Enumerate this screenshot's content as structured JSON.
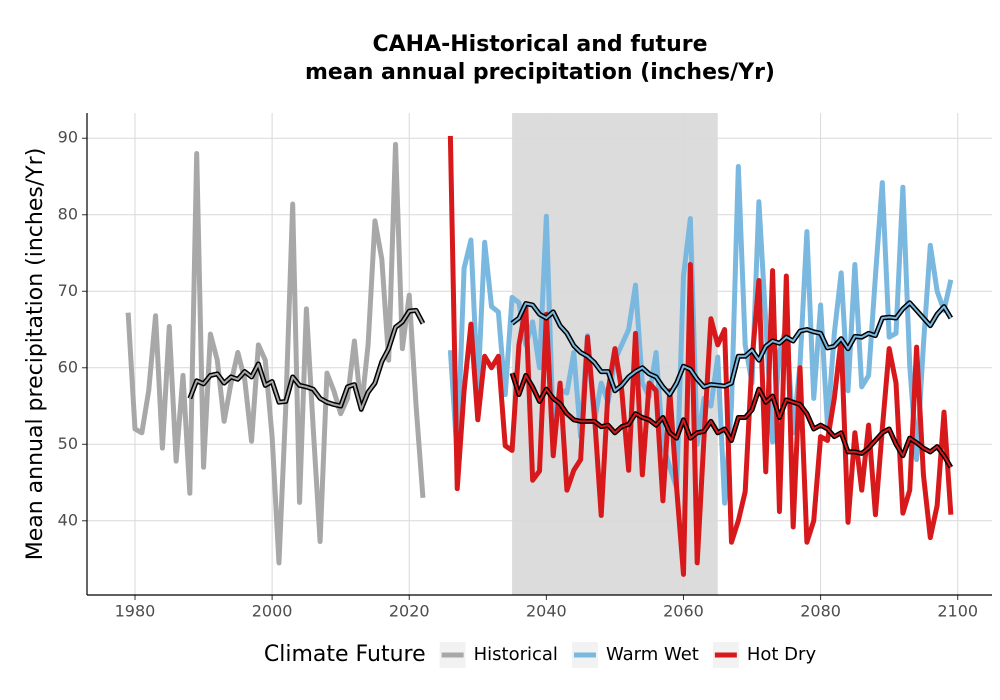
{
  "chart_data": {
    "type": "line",
    "title": [
      "CAHA-Historical and future",
      "mean annual precipitation (inches/Yr)"
    ],
    "y_label": "Mean annual precipitation (inches/Yr)",
    "legend_title": "Climate Future",
    "legend": "bottom",
    "grid": true,
    "xlim": [
      1973,
      2105
    ],
    "ylim": [
      30.3,
      93.3
    ],
    "xticks": [
      1980,
      2000,
      2020,
      2040,
      2060,
      2080,
      2100
    ],
    "yticks": [
      40,
      50,
      60,
      70,
      80,
      90
    ],
    "shaded_span": [
      2035,
      2065
    ],
    "shade_color": "#dcdcdc",
    "smooth_color": "#000000",
    "series": [
      {
        "name": "Historical",
        "color": "#a8a8a8",
        "x": [
          1979,
          1980,
          1981,
          1982,
          1983,
          1984,
          1985,
          1986,
          1987,
          1988,
          1989,
          1990,
          1991,
          1992,
          1993,
          1994,
          1995,
          1996,
          1997,
          1998,
          1999,
          2000,
          2001,
          2002,
          2003,
          2004,
          2005,
          2006,
          2007,
          2008,
          2009,
          2010,
          2011,
          2012,
          2013,
          2014,
          2015,
          2016,
          2017,
          2018,
          2019,
          2020,
          2021,
          2022
        ],
        "values": [
          67.2,
          52,
          51.5,
          57,
          66.8,
          49.5,
          65.4,
          47.8,
          59,
          43.6,
          88,
          47,
          64.4,
          61,
          53,
          58,
          62,
          58.5,
          50.4,
          63,
          61,
          51,
          34.5,
          55,
          81.4,
          42.4,
          67.7,
          52,
          37.3,
          59.3,
          57,
          54,
          56,
          63.5,
          54.5,
          63,
          79.2,
          74.2,
          61,
          89.2,
          62.5,
          69.5,
          55,
          43
        ],
        "smooth": [
          null,
          null,
          null,
          null,
          null,
          null,
          null,
          null,
          null,
          56,
          58.3,
          57.9,
          59,
          59.2,
          58,
          58.8,
          58.5,
          59.5,
          58.8,
          60.5,
          57.7,
          58.2,
          55.5,
          55.6,
          58.8,
          57.7,
          57.5,
          57.2,
          56,
          55.5,
          55.2,
          55,
          57.5,
          57.8,
          54.6,
          56.8,
          58,
          60.8,
          62.5,
          65.3,
          66,
          67.4,
          67.5,
          65.8
        ]
      },
      {
        "name": "Warm Wet",
        "color": "#7ab8e0",
        "x": [
          2026,
          2027,
          2028,
          2029,
          2030,
          2031,
          2032,
          2033,
          2034,
          2035,
          2036,
          2037,
          2038,
          2039,
          2040,
          2041,
          2042,
          2043,
          2044,
          2045,
          2046,
          2047,
          2048,
          2049,
          2050,
          2051,
          2052,
          2053,
          2054,
          2055,
          2056,
          2057,
          2058,
          2059,
          2060,
          2061,
          2062,
          2063,
          2064,
          2065,
          2066,
          2067,
          2068,
          2069,
          2070,
          2071,
          2072,
          2073,
          2074,
          2075,
          2076,
          2077,
          2078,
          2079,
          2080,
          2081,
          2082,
          2083,
          2084,
          2085,
          2086,
          2087,
          2088,
          2089,
          2090,
          2091,
          2092,
          2093,
          2094,
          2095,
          2096,
          2097,
          2098,
          2099
        ],
        "values": [
          62.3,
          48.2,
          73,
          76.7,
          57,
          76.4,
          68,
          67.3,
          56.5,
          69.2,
          68.5,
          63,
          66,
          60,
          79.8,
          52,
          57.2,
          56.7,
          62,
          51,
          64.2,
          53,
          58,
          55.5,
          61,
          63,
          65,
          70.8,
          58,
          56.2,
          62,
          50,
          47,
          44.3,
          72,
          79.5,
          50,
          56,
          55,
          61.4,
          42.3,
          55,
          86.3,
          63,
          58,
          81.7,
          66,
          50.3,
          62,
          65.5,
          51.5,
          60.5,
          77.8,
          56,
          68.2,
          52.5,
          64.5,
          72.4,
          57,
          73.5,
          57.5,
          59,
          72,
          84.2,
          64,
          64.5,
          83.6,
          60.3,
          48,
          63,
          76,
          70,
          67.5,
          71.5
        ],
        "smooth": [
          null,
          null,
          null,
          null,
          null,
          null,
          null,
          null,
          null,
          65.8,
          66.5,
          68.4,
          68.2,
          67,
          66.5,
          67.3,
          65.5,
          64.5,
          62.9,
          62,
          61.5,
          60.7,
          59.5,
          59.5,
          57,
          57.7,
          58.8,
          59.5,
          60,
          59.2,
          58.8,
          57.5,
          56.5,
          58,
          60.2,
          59.8,
          58.5,
          57.5,
          57.8,
          57.7,
          57.6,
          58,
          61.5,
          61.5,
          62.3,
          61,
          62.8,
          63.5,
          63.2,
          64,
          63.5,
          64.8,
          65,
          64.7,
          64.5,
          62.6,
          62.8,
          63.8,
          62.5,
          64.1,
          64,
          64.5,
          64.2,
          66.5,
          66.6,
          66.5,
          67.7,
          68.5,
          67.5,
          66.5,
          65.5,
          67,
          68,
          66.5
        ]
      },
      {
        "name": "Hot Dry",
        "color": "#d7191c",
        "x": [
          2026,
          2027,
          2028,
          2029,
          2030,
          2031,
          2032,
          2033,
          2034,
          2035,
          2036,
          2037,
          2038,
          2039,
          2040,
          2041,
          2042,
          2043,
          2044,
          2045,
          2046,
          2047,
          2048,
          2049,
          2050,
          2051,
          2052,
          2053,
          2054,
          2055,
          2056,
          2057,
          2058,
          2059,
          2060,
          2061,
          2062,
          2063,
          2064,
          2065,
          2066,
          2067,
          2068,
          2069,
          2070,
          2071,
          2072,
          2073,
          2074,
          2075,
          2076,
          2077,
          2078,
          2079,
          2080,
          2081,
          2082,
          2083,
          2084,
          2085,
          2086,
          2087,
          2088,
          2089,
          2090,
          2091,
          2092,
          2093,
          2094,
          2095,
          2096,
          2097,
          2098,
          2099
        ],
        "values": [
          90.3,
          44.2,
          57,
          65.7,
          53.2,
          61.5,
          60,
          61.5,
          49.8,
          49.2,
          63,
          68,
          45.3,
          46.5,
          67,
          48.5,
          58,
          44,
          46.6,
          48,
          64,
          54,
          40.7,
          57,
          62.5,
          57,
          46.6,
          64.5,
          46,
          58,
          57,
          42.6,
          57,
          44.3,
          33,
          73.5,
          34.5,
          51,
          66.4,
          63,
          65,
          37.2,
          40,
          43.8,
          61,
          71.4,
          46.4,
          72.7,
          41.2,
          72,
          39.2,
          60,
          37.2,
          40,
          51,
          50.5,
          56,
          63.8,
          39.8,
          51.5,
          44,
          52.5,
          40.8,
          52,
          62.5,
          58,
          41,
          44,
          62.7,
          46,
          37.8,
          42,
          54.2,
          40.8
        ],
        "smooth": [
          null,
          null,
          null,
          null,
          null,
          null,
          null,
          null,
          null,
          59.3,
          56.5,
          59,
          57.5,
          55.6,
          57.2,
          56,
          55.3,
          54,
          53.2,
          53,
          53,
          53,
          52.3,
          52.5,
          51.5,
          52.3,
          52.6,
          54,
          53.5,
          53.2,
          52.5,
          53.5,
          51.5,
          50.8,
          53.2,
          50.8,
          51.5,
          51.7,
          53,
          51.5,
          52,
          50.5,
          53.5,
          53.5,
          54.5,
          57.2,
          55.5,
          56.3,
          53.5,
          55.8,
          55.5,
          55.2,
          54,
          52,
          52.5,
          52,
          51,
          51.5,
          49,
          49,
          48.8,
          49.5,
          50.5,
          51.5,
          52,
          50,
          48.5,
          50.8,
          50.2,
          49.5,
          49,
          49.7,
          48.5,
          47
        ]
      }
    ]
  }
}
